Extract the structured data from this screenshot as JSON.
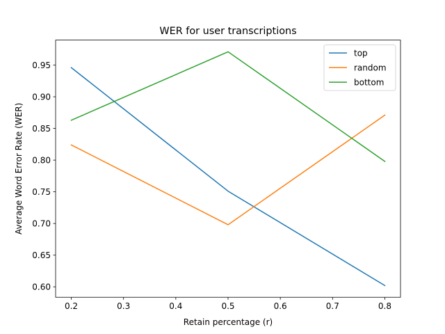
{
  "chart_data": {
    "type": "line",
    "title": "WER for user transcriptions",
    "xlabel": "Retain percentage (r)",
    "ylabel": "Average Word Error Rate (WER)",
    "x": [
      0.2,
      0.5,
      0.8
    ],
    "xlim": [
      0.17,
      0.83
    ],
    "ylim": [
      0.5835,
      0.9895
    ],
    "xticks": [
      0.2,
      0.3,
      0.4,
      0.5,
      0.6,
      0.7,
      0.8
    ],
    "xtick_labels": [
      "0.2",
      "0.3",
      "0.4",
      "0.5",
      "0.6",
      "0.7",
      "0.8"
    ],
    "yticks": [
      0.6,
      0.65,
      0.7,
      0.75,
      0.8,
      0.85,
      0.9,
      0.95
    ],
    "ytick_labels": [
      "0.60",
      "0.65",
      "0.70",
      "0.75",
      "0.80",
      "0.85",
      "0.90",
      "0.95"
    ],
    "grid": false,
    "legend_position": "top-right",
    "series": [
      {
        "name": "top",
        "color": "#1f77b4",
        "values": [
          0.946,
          0.751,
          0.602
        ]
      },
      {
        "name": "random",
        "color": "#ff7f0e",
        "values": [
          0.824,
          0.698,
          0.871
        ]
      },
      {
        "name": "bottom",
        "color": "#2ca02c",
        "values": [
          0.863,
          0.971,
          0.798
        ]
      }
    ]
  }
}
